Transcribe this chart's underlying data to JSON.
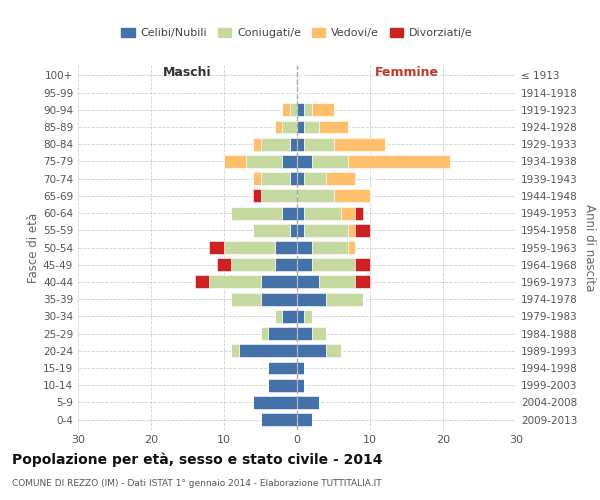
{
  "age_groups": [
    "0-4",
    "5-9",
    "10-14",
    "15-19",
    "20-24",
    "25-29",
    "30-34",
    "35-39",
    "40-44",
    "45-49",
    "50-54",
    "55-59",
    "60-64",
    "65-69",
    "70-74",
    "75-79",
    "80-84",
    "85-89",
    "90-94",
    "95-99",
    "100+"
  ],
  "birth_years": [
    "2009-2013",
    "2004-2008",
    "1999-2003",
    "1994-1998",
    "1989-1993",
    "1984-1988",
    "1979-1983",
    "1974-1978",
    "1969-1973",
    "1964-1968",
    "1959-1963",
    "1954-1958",
    "1949-1953",
    "1944-1948",
    "1939-1943",
    "1934-1938",
    "1929-1933",
    "1924-1928",
    "1919-1923",
    "1914-1918",
    "≤ 1913"
  ],
  "males": {
    "celibi": [
      5,
      6,
      4,
      4,
      8,
      4,
      2,
      5,
      5,
      3,
      3,
      1,
      2,
      0,
      1,
      2,
      1,
      0,
      0,
      0,
      0
    ],
    "coniugati": [
      0,
      0,
      0,
      0,
      1,
      1,
      1,
      4,
      7,
      6,
      7,
      5,
      7,
      5,
      4,
      5,
      4,
      2,
      1,
      0,
      0
    ],
    "vedovi": [
      0,
      0,
      0,
      0,
      0,
      0,
      0,
      0,
      0,
      0,
      0,
      0,
      0,
      0,
      1,
      3,
      1,
      1,
      1,
      0,
      0
    ],
    "divorziati": [
      0,
      0,
      0,
      0,
      0,
      0,
      0,
      0,
      2,
      2,
      2,
      0,
      0,
      1,
      0,
      0,
      0,
      0,
      0,
      0,
      0
    ]
  },
  "females": {
    "nubili": [
      2,
      3,
      1,
      1,
      4,
      2,
      1,
      4,
      3,
      2,
      2,
      1,
      1,
      0,
      1,
      2,
      1,
      1,
      1,
      0,
      0
    ],
    "coniugate": [
      0,
      0,
      0,
      0,
      2,
      2,
      1,
      5,
      5,
      6,
      5,
      6,
      5,
      5,
      3,
      5,
      4,
      2,
      1,
      0,
      0
    ],
    "vedove": [
      0,
      0,
      0,
      0,
      0,
      0,
      0,
      0,
      0,
      0,
      1,
      1,
      2,
      5,
      4,
      14,
      7,
      4,
      3,
      0,
      0
    ],
    "divorziate": [
      0,
      0,
      0,
      0,
      0,
      0,
      0,
      0,
      2,
      2,
      0,
      2,
      1,
      0,
      0,
      0,
      0,
      0,
      0,
      0,
      0
    ]
  },
  "colors": {
    "celibi": "#4472a8",
    "coniugati": "#c5d9a0",
    "vedovi": "#ffc06e",
    "divorziati": "#cc2222"
  },
  "title": "Popolazione per età, sesso e stato civile - 2014",
  "subtitle": "COMUNE DI REZZO (IM) - Dati ISTAT 1° gennaio 2014 - Elaborazione TUTTITALIA.IT",
  "xlim": 30,
  "legend_labels": [
    "Celibi/Nubili",
    "Coniugati/e",
    "Vedovi/e",
    "Divorziati/e"
  ],
  "xlabel_left": "Maschi",
  "xlabel_right": "Femmine",
  "ylabel_left": "Fasce di età",
  "ylabel_right": "Anni di nascita",
  "background_color": "#ffffff",
  "grid_color": "#cccccc"
}
